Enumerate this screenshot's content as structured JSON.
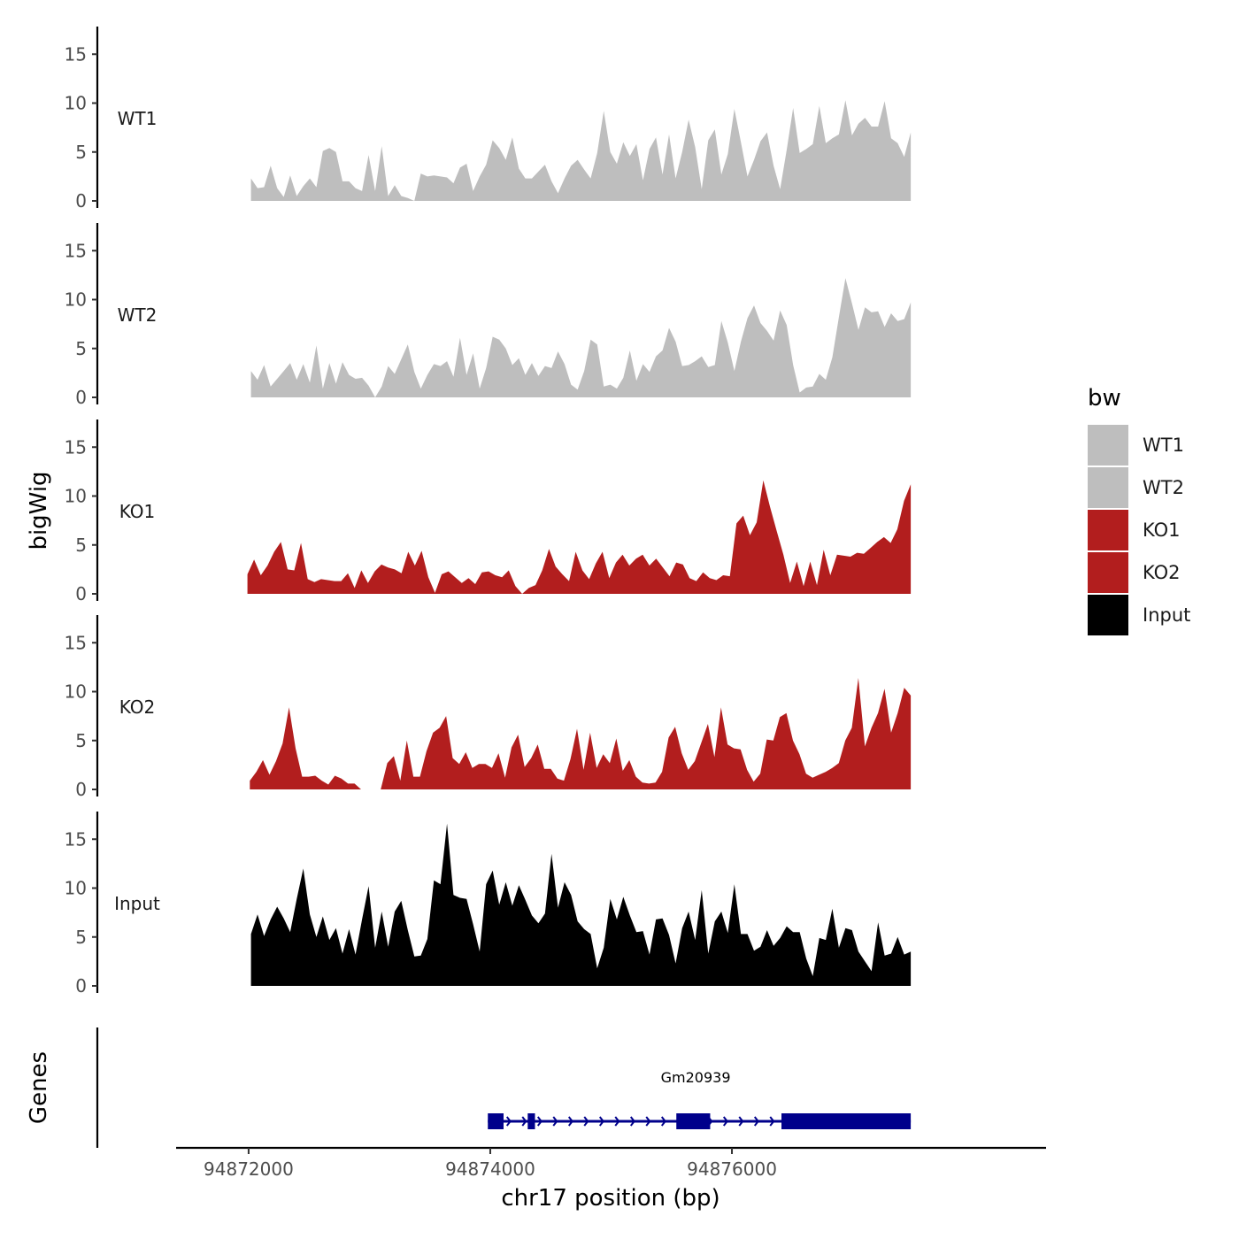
{
  "chart_data": {
    "type": "area",
    "chromosome": "chr17",
    "xlabel": "chr17 position (bp)",
    "ylabel": "bigWig",
    "genes_label": "Genes",
    "xlim": [
      94871400,
      94878600
    ],
    "x_ticks": [
      94872000,
      94874000,
      94876000
    ],
    "x_tick_labels": [
      "94872000",
      "94874000",
      "94876000"
    ],
    "ylim": [
      0,
      18
    ],
    "y_ticks": [
      0,
      5,
      10,
      15
    ],
    "y_tick_labels": [
      "0",
      "5",
      "10",
      "15"
    ],
    "legend": {
      "title": "bw",
      "entries": [
        {
          "label": "WT1",
          "color": "#bebebe"
        },
        {
          "label": "WT2",
          "color": "#bebebe"
        },
        {
          "label": "KO1",
          "color": "#b21e1e"
        },
        {
          "label": "KO2",
          "color": "#b21e1e"
        },
        {
          "label": "Input",
          "color": "#000000"
        }
      ]
    },
    "series": [
      {
        "name": "WT1",
        "color": "#bebebe",
        "start": 94872020,
        "end": 94877480,
        "values": [
          2.3,
          1.3,
          1.4,
          3.6,
          1.3,
          0.4,
          2.6,
          0.5,
          1.5,
          2.3,
          1.4,
          5.1,
          5.4,
          5.0,
          2.0,
          2.0,
          1.3,
          1.0,
          4.7,
          1.0,
          5.6,
          0.5,
          1.6,
          0.5,
          0.3,
          0.0,
          2.8,
          2.5,
          2.6,
          2.5,
          2.4,
          1.8,
          3.4,
          3.8,
          1.0,
          2.5,
          3.7,
          6.2,
          5.4,
          4.2,
          6.5,
          3.3,
          2.3,
          2.3,
          3.0,
          3.7,
          2.0,
          0.8,
          2.3,
          3.6,
          4.2,
          3.2,
          2.3,
          4.9,
          9.2,
          5.0,
          3.8,
          6.0,
          4.6,
          5.8,
          2.1,
          5.3,
          6.5,
          2.7,
          6.8,
          2.3,
          5.0,
          8.3,
          5.5,
          1.2,
          6.2,
          7.3,
          2.7,
          4.8,
          9.4,
          6.0,
          2.5,
          4.2,
          6.1,
          7.0,
          3.6,
          1.2,
          5.2,
          9.5,
          4.9,
          5.3,
          5.8,
          9.7,
          5.9,
          6.4,
          6.8,
          10.3,
          6.7,
          7.9,
          8.5,
          7.6,
          7.6,
          10.2,
          6.4,
          5.9,
          4.5,
          7.0
        ]
      },
      {
        "name": "WT2",
        "color": "#bebebe",
        "start": 94872020,
        "end": 94877480,
        "values": [
          2.7,
          1.8,
          3.3,
          1.1,
          1.9,
          2.7,
          3.5,
          1.8,
          3.4,
          1.5,
          5.3,
          0.9,
          3.5,
          1.4,
          3.6,
          2.3,
          1.9,
          2.0,
          1.2,
          0.0,
          1.1,
          3.2,
          2.4,
          3.9,
          5.4,
          2.6,
          0.9,
          2.3,
          3.4,
          3.2,
          3.7,
          2.1,
          6.1,
          2.3,
          4.5,
          0.9,
          3.0,
          6.2,
          5.9,
          5.0,
          3.3,
          4.0,
          2.3,
          3.5,
          2.2,
          3.2,
          3.0,
          4.7,
          3.4,
          1.3,
          0.8,
          2.7,
          5.9,
          5.4,
          1.1,
          1.3,
          0.9,
          2.0,
          4.8,
          1.7,
          3.4,
          2.6,
          4.2,
          4.8,
          7.1,
          5.7,
          3.2,
          3.3,
          3.7,
          4.2,
          3.1,
          3.3,
          7.8,
          5.6,
          2.7,
          5.7,
          8.1,
          9.4,
          7.6,
          6.8,
          5.8,
          8.9,
          7.4,
          3.3,
          0.5,
          1.0,
          1.1,
          2.4,
          1.8,
          4.1,
          8.2,
          12.2,
          9.6,
          6.9,
          9.2,
          8.7,
          8.8,
          7.2,
          8.6,
          7.8,
          8.0,
          9.7
        ]
      },
      {
        "name": "KO1",
        "color": "#b21e1e",
        "start": 94871990,
        "end": 94877480,
        "values": [
          2.0,
          3.5,
          1.9,
          2.9,
          4.3,
          5.3,
          2.5,
          2.4,
          5.2,
          1.5,
          1.2,
          1.5,
          1.4,
          1.3,
          1.3,
          2.1,
          0.6,
          2.4,
          1.1,
          2.3,
          3.0,
          2.7,
          2.5,
          2.1,
          4.3,
          2.9,
          4.4,
          1.7,
          0.1,
          2.0,
          2.3,
          1.7,
          1.1,
          1.6,
          1.0,
          2.2,
          2.3,
          1.9,
          1.7,
          2.4,
          0.8,
          0.0,
          0.6,
          0.9,
          2.4,
          4.6,
          2.8,
          2.0,
          1.3,
          4.3,
          2.4,
          1.5,
          3.1,
          4.3,
          1.6,
          3.2,
          4.0,
          2.9,
          3.6,
          4.0,
          2.9,
          3.6,
          2.7,
          1.8,
          3.2,
          3.0,
          1.6,
          1.3,
          2.2,
          1.6,
          1.4,
          1.9,
          1.8,
          7.2,
          8.0,
          6.0,
          7.3,
          11.6,
          8.9,
          6.4,
          4.0,
          1.1,
          3.3,
          0.8,
          3.3,
          0.9,
          4.5,
          1.9,
          4.0,
          3.9,
          3.8,
          4.2,
          4.1,
          4.7,
          5.3,
          5.8,
          5.2,
          6.6,
          9.5,
          11.2
        ]
      },
      {
        "name": "KO2",
        "color": "#b21e1e",
        "start": 94872010,
        "end": 94877480,
        "values": [
          0.9,
          1.8,
          3.0,
          1.5,
          2.9,
          4.7,
          8.4,
          4.2,
          1.3,
          1.3,
          1.4,
          0.9,
          0.5,
          1.4,
          1.1,
          0.6,
          0.6,
          0.0,
          0.0,
          0.0,
          0.0,
          2.7,
          3.4,
          0.9,
          5.0,
          1.3,
          1.3,
          3.9,
          5.8,
          6.3,
          7.5,
          3.2,
          2.6,
          3.8,
          2.2,
          2.6,
          2.6,
          2.2,
          3.7,
          1.2,
          4.3,
          5.6,
          2.3,
          3.2,
          4.6,
          2.1,
          2.1,
          1.1,
          0.9,
          3.1,
          6.2,
          2.0,
          5.8,
          2.2,
          3.6,
          2.7,
          5.2,
          1.9,
          3.0,
          1.3,
          0.7,
          0.6,
          0.7,
          1.8,
          5.3,
          6.4,
          3.7,
          2.0,
          2.9,
          4.8,
          6.7,
          3.3,
          8.4,
          4.6,
          4.2,
          4.1,
          2.0,
          0.8,
          1.6,
          5.1,
          5.0,
          7.4,
          7.8,
          5.0,
          3.6,
          1.6,
          1.2,
          1.5,
          1.8,
          2.2,
          2.7,
          5.0,
          6.3,
          11.4,
          4.4,
          6.3,
          7.8,
          10.3,
          5.8,
          7.8,
          10.4,
          9.6
        ]
      },
      {
        "name": "Input",
        "color": "#000000",
        "start": 94872020,
        "end": 94877480,
        "values": [
          5.3,
          7.3,
          5.1,
          6.8,
          8.1,
          6.9,
          5.5,
          8.9,
          12.0,
          7.3,
          5.0,
          7.1,
          4.7,
          5.9,
          3.3,
          5.8,
          3.2,
          6.8,
          10.2,
          3.9,
          7.6,
          4.0,
          7.6,
          8.7,
          5.7,
          3.0,
          3.1,
          4.8,
          10.8,
          10.4,
          16.6,
          9.3,
          9.0,
          8.9,
          6.3,
          3.5,
          10.4,
          11.8,
          8.3,
          10.6,
          8.2,
          10.3,
          8.8,
          7.2,
          6.4,
          7.4,
          13.5,
          8.0,
          10.6,
          9.3,
          6.6,
          5.8,
          5.3,
          1.8,
          3.9,
          8.9,
          6.8,
          9.1,
          7.2,
          5.5,
          5.6,
          3.2,
          6.8,
          6.9,
          5.2,
          2.3,
          5.9,
          7.6,
          4.7,
          9.8,
          3.3,
          6.6,
          7.6,
          5.4,
          10.4,
          5.3,
          5.3,
          3.6,
          4.0,
          5.7,
          4.1,
          4.9,
          6.1,
          5.5,
          5.5,
          2.8,
          1.0,
          4.9,
          4.7,
          7.9,
          3.9,
          5.9,
          5.7,
          3.5,
          2.5,
          1.5,
          6.5,
          3.1,
          3.3,
          5.0,
          3.2,
          3.5
        ]
      }
    ],
    "gene_track": {
      "name": "Gm20939",
      "color": "#00008b",
      "strand": "+",
      "start": 94873980,
      "end": 94877480,
      "exons": [
        [
          94873980,
          94874110
        ],
        [
          94874310,
          94874370
        ],
        [
          94875540,
          94875820
        ],
        [
          94876410,
          94877480
        ]
      ]
    }
  }
}
